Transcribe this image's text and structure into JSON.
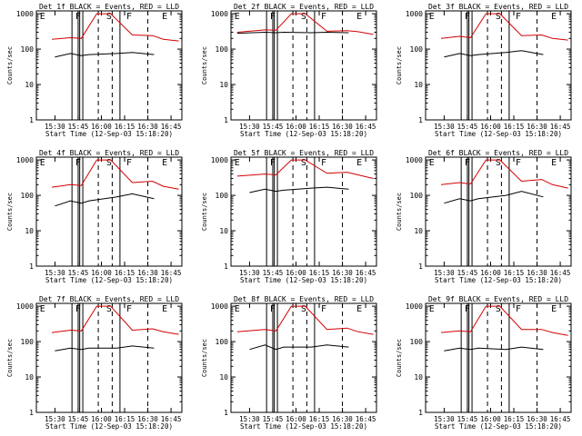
{
  "figure": {
    "xlabel": "Start Time (12-Sep-03 15:18:20)",
    "ylabel": "Counts/sec",
    "colors": {
      "black": "#000000",
      "red": "#d40000",
      "background": "#ffffff"
    }
  },
  "chart_data": [
    {
      "type": "line",
      "title": "Det 1f BLACK = Events, RED = LLD",
      "xlabel": "Start Time (12-Sep-03 15:18:20)",
      "ylabel": "Counts/sec",
      "x_ticks": [
        "15:30",
        "15:45",
        "16:00",
        "16:15",
        "16:30",
        "16:45"
      ],
      "y_ticks": [
        "1",
        "10",
        "100",
        "1000"
      ],
      "yscale": "log",
      "ylim": [
        1,
        1200
      ],
      "markers": [
        "E",
        "F",
        "S",
        "F",
        "E"
      ],
      "series": [
        {
          "color": "red",
          "x": [
            "15:28",
            "15:40",
            "15:47",
            "15:57",
            "16:06",
            "16:20",
            "16:33",
            "16:40",
            "16:50"
          ],
          "values": [
            190,
            210,
            200,
            1000,
            1000,
            250,
            240,
            190,
            170
          ]
        },
        {
          "color": "black",
          "x": [
            "15:30",
            "15:40",
            "15:47",
            "15:52",
            "16:10",
            "16:20",
            "16:34"
          ],
          "values": [
            60,
            75,
            65,
            70,
            75,
            80,
            70
          ]
        }
      ]
    },
    {
      "type": "line",
      "title": "Det 2f BLACK = Events, RED = LLD",
      "xlabel": "Start Time (12-Sep-03 15:18:20)",
      "ylabel": "Counts/sec",
      "x_ticks": [
        "15:30",
        "15:45",
        "16:00",
        "16:15",
        "16:30",
        "16:45"
      ],
      "y_ticks": [
        "1",
        "10",
        "100",
        "1000"
      ],
      "yscale": "log",
      "ylim": [
        1,
        1200
      ],
      "markers": [
        "E",
        "F",
        "S",
        "F",
        "E"
      ],
      "series": [
        {
          "color": "red",
          "x": [
            "15:22",
            "15:40",
            "15:47",
            "15:57",
            "16:06",
            "16:20",
            "16:33",
            "16:40",
            "16:50"
          ],
          "values": [
            300,
            350,
            340,
            1000,
            1000,
            320,
            330,
            310,
            260
          ]
        },
        {
          "color": "black",
          "x": [
            "15:22",
            "15:40",
            "15:47",
            "15:52",
            "16:10",
            "16:20",
            "16:34"
          ],
          "values": [
            280,
            300,
            290,
            300,
            290,
            300,
            290
          ]
        }
      ]
    },
    {
      "type": "line",
      "title": "Det 3f BLACK = Events, RED = LLD",
      "xlabel": "Start Time (12-Sep-03 15:18:20)",
      "ylabel": "Counts/sec",
      "x_ticks": [
        "15:30",
        "15:45",
        "16:00",
        "16:15",
        "16:30",
        "16:45"
      ],
      "y_ticks": [
        "1",
        "10",
        "100",
        "1000"
      ],
      "yscale": "log",
      "ylim": [
        1,
        1200
      ],
      "markers": [
        "E",
        "F",
        "S",
        "F",
        "E"
      ],
      "series": [
        {
          "color": "red",
          "x": [
            "15:28",
            "15:40",
            "15:47",
            "15:57",
            "16:06",
            "16:20",
            "16:33",
            "16:40",
            "16:50"
          ],
          "values": [
            200,
            230,
            210,
            1000,
            1000,
            240,
            250,
            200,
            180
          ]
        },
        {
          "color": "black",
          "x": [
            "15:30",
            "15:40",
            "15:47",
            "15:52",
            "16:10",
            "16:20",
            "16:34"
          ],
          "values": [
            60,
            75,
            65,
            70,
            80,
            90,
            70
          ]
        }
      ]
    },
    {
      "type": "line",
      "title": "Det 4f BLACK = Events, RED = LLD",
      "xlabel": "Start Time (12-Sep-03 15:18:20)",
      "ylabel": "Counts/sec",
      "x_ticks": [
        "15:30",
        "15:45",
        "16:00",
        "16:15",
        "16:30",
        "16:45"
      ],
      "y_ticks": [
        "1",
        "10",
        "100",
        "1000"
      ],
      "yscale": "log",
      "ylim": [
        1,
        1200
      ],
      "markers": [
        "E",
        "F",
        "S",
        "F",
        "E"
      ],
      "series": [
        {
          "color": "red",
          "x": [
            "15:28",
            "15:40",
            "15:47",
            "15:57",
            "16:06",
            "16:20",
            "16:33",
            "16:40",
            "16:50"
          ],
          "values": [
            170,
            200,
            190,
            1000,
            1000,
            230,
            250,
            180,
            150
          ]
        },
        {
          "color": "black",
          "x": [
            "15:30",
            "15:40",
            "15:47",
            "15:52",
            "16:10",
            "16:20",
            "16:34"
          ],
          "values": [
            50,
            70,
            60,
            70,
            90,
            110,
            80
          ]
        }
      ]
    },
    {
      "type": "line",
      "title": "Det 5f BLACK = Events, RED = LLD",
      "xlabel": "Start Time (12-Sep-03 15:18:20)",
      "ylabel": "Counts/sec",
      "x_ticks": [
        "15:30",
        "15:45",
        "16:00",
        "16:15",
        "16:30",
        "16:45"
      ],
      "y_ticks": [
        "1",
        "10",
        "100",
        "1000"
      ],
      "yscale": "log",
      "ylim": [
        1,
        1200
      ],
      "markers": [
        "E",
        "F",
        "S",
        "F",
        "E"
      ],
      "series": [
        {
          "color": "red",
          "x": [
            "15:22",
            "15:40",
            "15:47",
            "15:57",
            "16:06",
            "16:20",
            "16:33",
            "16:40",
            "16:50"
          ],
          "values": [
            350,
            400,
            380,
            1000,
            1000,
            420,
            450,
            380,
            300
          ]
        },
        {
          "color": "black",
          "x": [
            "15:30",
            "15:40",
            "15:47",
            "15:52",
            "16:10",
            "16:20",
            "16:34"
          ],
          "values": [
            120,
            150,
            130,
            140,
            160,
            170,
            150
          ]
        }
      ]
    },
    {
      "type": "line",
      "title": "Det 6f BLACK = Events, RED = LLD",
      "xlabel": "Start Time (12-Sep-03 15:18:20)",
      "ylabel": "Counts/sec",
      "x_ticks": [
        "15:30",
        "15:45",
        "16:00",
        "16:15",
        "16:30",
        "16:45"
      ],
      "y_ticks": [
        "1",
        "10",
        "100",
        "1000"
      ],
      "yscale": "log",
      "ylim": [
        1,
        1200
      ],
      "markers": [
        "E",
        "F",
        "S",
        "F",
        "E"
      ],
      "series": [
        {
          "color": "red",
          "x": [
            "15:28",
            "15:40",
            "15:47",
            "15:57",
            "16:06",
            "16:20",
            "16:33",
            "16:40",
            "16:50"
          ],
          "values": [
            200,
            230,
            210,
            1000,
            1000,
            250,
            280,
            200,
            160
          ]
        },
        {
          "color": "black",
          "x": [
            "15:30",
            "15:40",
            "15:47",
            "15:52",
            "16:10",
            "16:20",
            "16:34"
          ],
          "values": [
            60,
            80,
            70,
            80,
            100,
            130,
            90
          ]
        }
      ]
    },
    {
      "type": "line",
      "title": "Det 7f BLACK = Events, RED = LLD",
      "xlabel": "Start Time (12-Sep-03 15:18:20)",
      "ylabel": "Counts/sec",
      "x_ticks": [
        "15:30",
        "15:45",
        "16:00",
        "16:15",
        "16:30",
        "16:45"
      ],
      "y_ticks": [
        "1",
        "10",
        "100",
        "1000"
      ],
      "yscale": "log",
      "ylim": [
        1,
        1200
      ],
      "markers": [
        "E",
        "F",
        "S",
        "F",
        "E"
      ],
      "series": [
        {
          "color": "red",
          "x": [
            "15:28",
            "15:40",
            "15:47",
            "15:57",
            "16:06",
            "16:20",
            "16:33",
            "16:40",
            "16:50"
          ],
          "values": [
            180,
            210,
            200,
            1000,
            1000,
            210,
            230,
            190,
            160
          ]
        },
        {
          "color": "black",
          "x": [
            "15:30",
            "15:40",
            "15:47",
            "15:52",
            "16:10",
            "16:20",
            "16:34"
          ],
          "values": [
            55,
            65,
            60,
            65,
            65,
            75,
            65
          ]
        }
      ]
    },
    {
      "type": "line",
      "title": "Det 8f BLACK = Events, RED = LLD",
      "xlabel": "Start Time (12-Sep-03 15:18:20)",
      "ylabel": "Counts/sec",
      "x_ticks": [
        "15:30",
        "15:45",
        "16:00",
        "16:15",
        "16:30",
        "16:45"
      ],
      "y_ticks": [
        "1",
        "10",
        "100",
        "1000"
      ],
      "yscale": "log",
      "ylim": [
        1,
        1200
      ],
      "markers": [
        "E",
        "F",
        "S",
        "F",
        "E"
      ],
      "series": [
        {
          "color": "red",
          "x": [
            "15:22",
            "15:40",
            "15:47",
            "15:57",
            "16:06",
            "16:20",
            "16:33",
            "16:40",
            "16:50"
          ],
          "values": [
            190,
            220,
            200,
            1000,
            1000,
            220,
            240,
            190,
            160
          ]
        },
        {
          "color": "black",
          "x": [
            "15:30",
            "15:40",
            "15:47",
            "15:52",
            "16:10",
            "16:20",
            "16:34"
          ],
          "values": [
            60,
            80,
            60,
            70,
            70,
            80,
            70
          ]
        }
      ]
    },
    {
      "type": "line",
      "title": "Det 9f BLACK = Events, RED = LLD",
      "xlabel": "Start Time (12-Sep-03 15:18:20)",
      "ylabel": "Counts/sec",
      "x_ticks": [
        "15:30",
        "15:45",
        "16:00",
        "16:15",
        "16:30",
        "16:45"
      ],
      "y_ticks": [
        "1",
        "10",
        "100",
        "1000"
      ],
      "yscale": "log",
      "ylim": [
        1,
        1200
      ],
      "markers": [
        "E",
        "F",
        "S",
        "F",
        "E"
      ],
      "series": [
        {
          "color": "red",
          "x": [
            "15:28",
            "15:40",
            "15:47",
            "15:57",
            "16:06",
            "16:20",
            "16:33",
            "16:40",
            "16:50"
          ],
          "values": [
            180,
            200,
            190,
            1000,
            1000,
            220,
            220,
            180,
            150
          ]
        },
        {
          "color": "black",
          "x": [
            "15:30",
            "15:40",
            "15:47",
            "15:52",
            "16:10",
            "16:20",
            "16:34"
          ],
          "values": [
            55,
            65,
            60,
            65,
            60,
            70,
            60
          ]
        }
      ]
    }
  ]
}
